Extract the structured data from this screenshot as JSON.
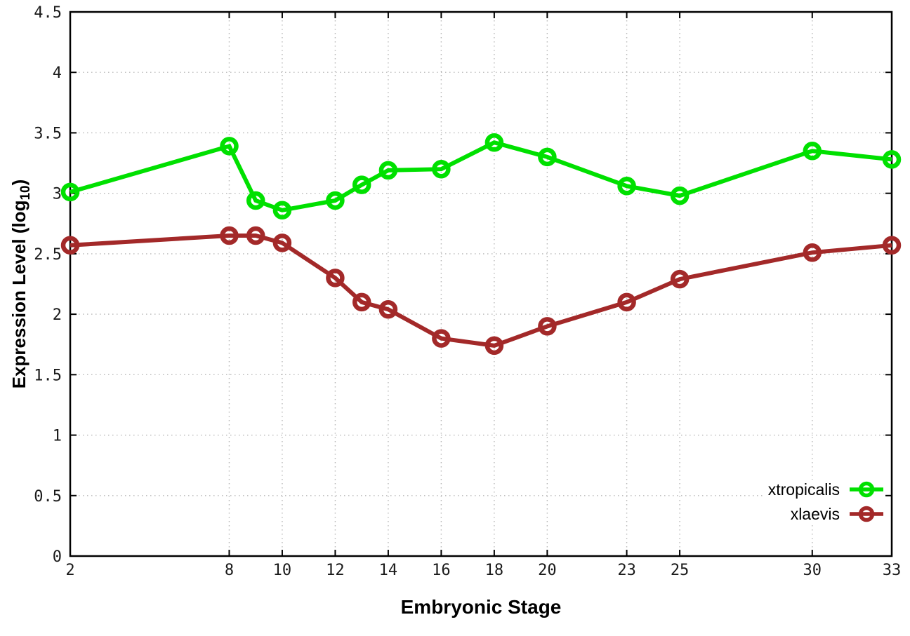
{
  "figure": {
    "xlabel": "Embryonic Stage",
    "ylabel_prefix": "Expression Level (log",
    "ylabel_sub": "10",
    "ylabel_suffix": ")",
    "background": "#ffffff"
  },
  "chart_data": {
    "type": "line",
    "title": "",
    "xlabel": "Embryonic Stage",
    "ylabel": "Expression Level (log10)",
    "x": [
      2,
      8,
      9,
      10,
      12,
      13,
      14,
      16,
      18,
      20,
      23,
      25,
      30,
      33
    ],
    "series": [
      {
        "name": "xtropicalis",
        "color": "#00e000",
        "values": [
          3.01,
          3.39,
          2.94,
          2.86,
          2.94,
          3.07,
          3.19,
          3.2,
          3.42,
          3.3,
          3.06,
          2.98,
          3.35,
          3.28
        ]
      },
      {
        "name": "xlaevis",
        "color": "#a32929",
        "values": [
          2.57,
          2.65,
          2.65,
          2.59,
          2.3,
          2.1,
          2.04,
          1.8,
          1.74,
          1.9,
          2.1,
          2.29,
          2.51,
          2.57
        ]
      }
    ],
    "xticks": [
      2,
      8,
      10,
      12,
      14,
      16,
      18,
      20,
      23,
      25,
      30,
      33
    ],
    "yticks": [
      0,
      0.5,
      1,
      1.5,
      2,
      2.5,
      3,
      3.5,
      4,
      4.5
    ],
    "xlim": [
      2,
      33
    ],
    "ylim": [
      0,
      4.5
    ],
    "grid": true,
    "grid_color": "#b8b8b8",
    "border_color": "#000000",
    "tick_label_color": "#1a1a1a",
    "legend_position": "bottom-right"
  },
  "legend": {
    "items": [
      {
        "label": "xtropicalis",
        "color": "#00e000"
      },
      {
        "label": "xlaevis",
        "color": "#a32929"
      }
    ]
  }
}
